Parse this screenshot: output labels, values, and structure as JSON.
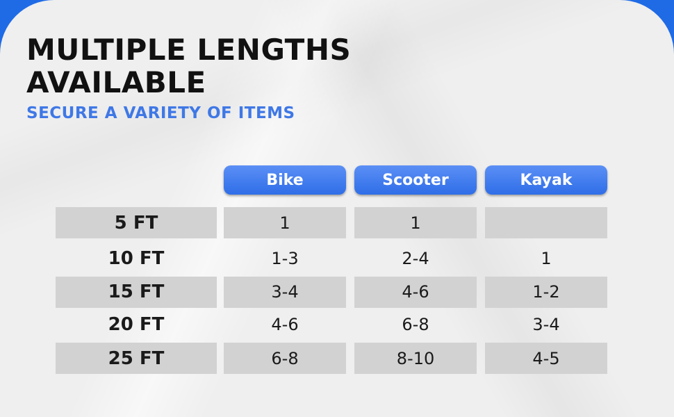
{
  "title_line1": "MULTIPLE LENGTHS",
  "title_line2": "AVAILABLE",
  "subtitle": "SECURE A VARIETY OF ITEMS",
  "columns": [
    "Bike",
    "Scooter",
    "Kayak"
  ],
  "rows": [
    {
      "length": "5 FT",
      "bike": "1",
      "scooter": "1",
      "kayak": ""
    },
    {
      "length": "10 FT",
      "bike": "1-3",
      "scooter": "2-4",
      "kayak": "1"
    },
    {
      "length": "15 FT",
      "bike": "3-4",
      "scooter": "4-6",
      "kayak": "1-2"
    },
    {
      "length": "20 FT",
      "bike": "4-6",
      "scooter": "6-8",
      "kayak": "3-4"
    },
    {
      "length": "25 FT",
      "bike": "6-8",
      "scooter": "8-10",
      "kayak": "4-5"
    }
  ],
  "colors": {
    "accent": "#1f6be6",
    "header_pill": "#3a77ee",
    "row_shade": "#d2d2d2",
    "subtitle": "#3f78e6"
  }
}
